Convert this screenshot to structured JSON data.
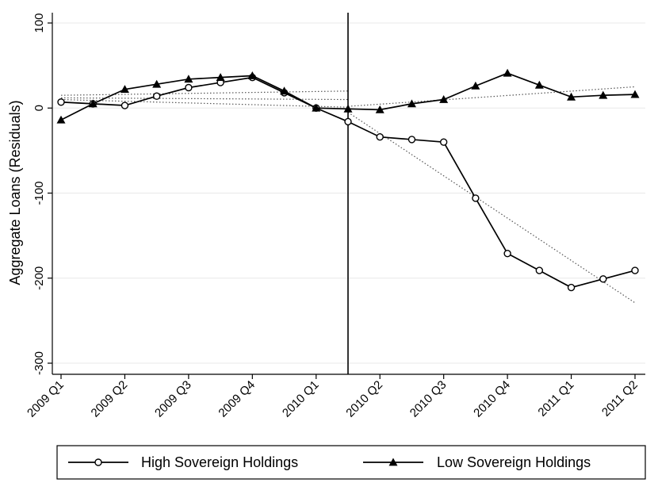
{
  "chart_data": {
    "type": "line",
    "title": "",
    "ylabel": "Aggregate Loans (Residuals)",
    "xlabel": "",
    "ylim": [
      -310,
      112
    ],
    "yticks": [
      100,
      0,
      -100,
      -200,
      -300
    ],
    "x_range": [
      0,
      18
    ],
    "x_ticks": [
      {
        "x": 0,
        "label": "2009 Q1"
      },
      {
        "x": 2,
        "label": "2009 Q2"
      },
      {
        "x": 4,
        "label": "2009 Q3"
      },
      {
        "x": 6,
        "label": "2009 Q4"
      },
      {
        "x": 8,
        "label": "2010 Q1"
      },
      {
        "x": 10,
        "label": "2010 Q2"
      },
      {
        "x": 12,
        "label": "2010 Q3"
      },
      {
        "x": 14,
        "label": "2010 Q4"
      },
      {
        "x": 16,
        "label": "2011 Q1"
      },
      {
        "x": 18,
        "label": "2011 Q2"
      }
    ],
    "grid": true,
    "vertical_line_x": 9,
    "legend_position": "bottom",
    "series": [
      {
        "name": "High Sovereign Holdings",
        "marker": "circle",
        "color": "#000000",
        "points": [
          [
            0,
            7
          ],
          [
            1,
            5
          ],
          [
            2,
            3
          ],
          [
            3,
            14
          ],
          [
            4,
            24
          ],
          [
            5,
            30
          ],
          [
            6,
            36
          ],
          [
            7,
            18
          ],
          [
            8,
            0
          ],
          [
            9,
            -16
          ],
          [
            10,
            -34
          ],
          [
            11,
            -37
          ],
          [
            12,
            -40
          ],
          [
            13,
            -106
          ],
          [
            14,
            -171
          ],
          [
            15,
            -191
          ],
          [
            16,
            -211
          ],
          [
            17,
            -201
          ],
          [
            18,
            -191
          ]
        ]
      },
      {
        "name": "Low Sovereign Holdings",
        "marker": "triangle",
        "color": "#000000",
        "points": [
          [
            0,
            -14
          ],
          [
            1,
            5
          ],
          [
            2,
            22
          ],
          [
            3,
            28
          ],
          [
            4,
            34
          ],
          [
            5,
            36
          ],
          [
            6,
            38
          ],
          [
            7,
            20
          ],
          [
            8,
            0
          ],
          [
            9,
            -1
          ],
          [
            10,
            -2
          ],
          [
            11,
            5
          ],
          [
            12,
            10
          ],
          [
            13,
            26
          ],
          [
            14,
            41
          ],
          [
            15,
            27
          ],
          [
            16,
            13
          ],
          [
            17,
            15
          ],
          [
            18,
            16
          ]
        ]
      }
    ],
    "trend_lines": [
      {
        "segment": [
          0,
          9
        ],
        "from": 15,
        "to": 20
      },
      {
        "segment": [
          0,
          9
        ],
        "from": 12,
        "to": 10
      },
      {
        "segment": [
          0,
          9
        ],
        "from": 10,
        "to": 1
      },
      {
        "segment": [
          9,
          18
        ],
        "from": -5,
        "to": -229
      },
      {
        "segment": [
          9,
          18
        ],
        "from": 2,
        "to": 25
      }
    ]
  }
}
